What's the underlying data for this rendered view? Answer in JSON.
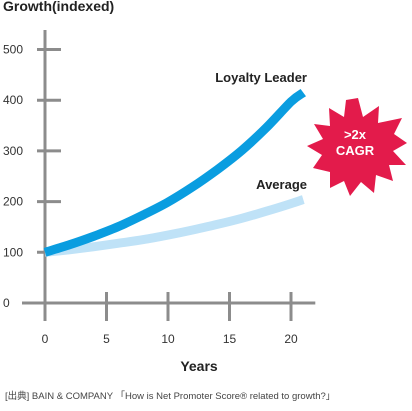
{
  "chart_data": {
    "type": "line",
    "ylabel": "Growth(indexed)",
    "xlabel": "Years",
    "x_ticks": [
      0,
      5,
      10,
      15,
      20
    ],
    "y_ticks": [
      0,
      100,
      200,
      300,
      400,
      500
    ],
    "xlim": [
      0,
      21
    ],
    "ylim": [
      0,
      500
    ],
    "grid": false,
    "series": [
      {
        "name": "Loyalty Leader",
        "color": "#0a9de0",
        "x": [
          0,
          2,
          4,
          6,
          8,
          10,
          12,
          14,
          16,
          18,
          20,
          21
        ],
        "y": [
          100,
          115,
          132,
          151,
          174,
          199,
          229,
          263,
          301,
          346,
          397,
          415
        ]
      },
      {
        "name": "Average",
        "color": "#bfe2f7",
        "x": [
          0,
          2,
          4,
          6,
          8,
          10,
          12,
          14,
          16,
          18,
          20,
          21
        ],
        "y": [
          100,
          105,
          111,
          118,
          125,
          134,
          144,
          155,
          167,
          181,
          196,
          204
        ]
      }
    ],
    "annotation": {
      "text_line1": ">2x",
      "text_line2": "CAGR",
      "color": "#e31b4b"
    },
    "source": "[出典] BAIN & COMPANY 「How is Net Promoter Score® related to growth?」"
  }
}
